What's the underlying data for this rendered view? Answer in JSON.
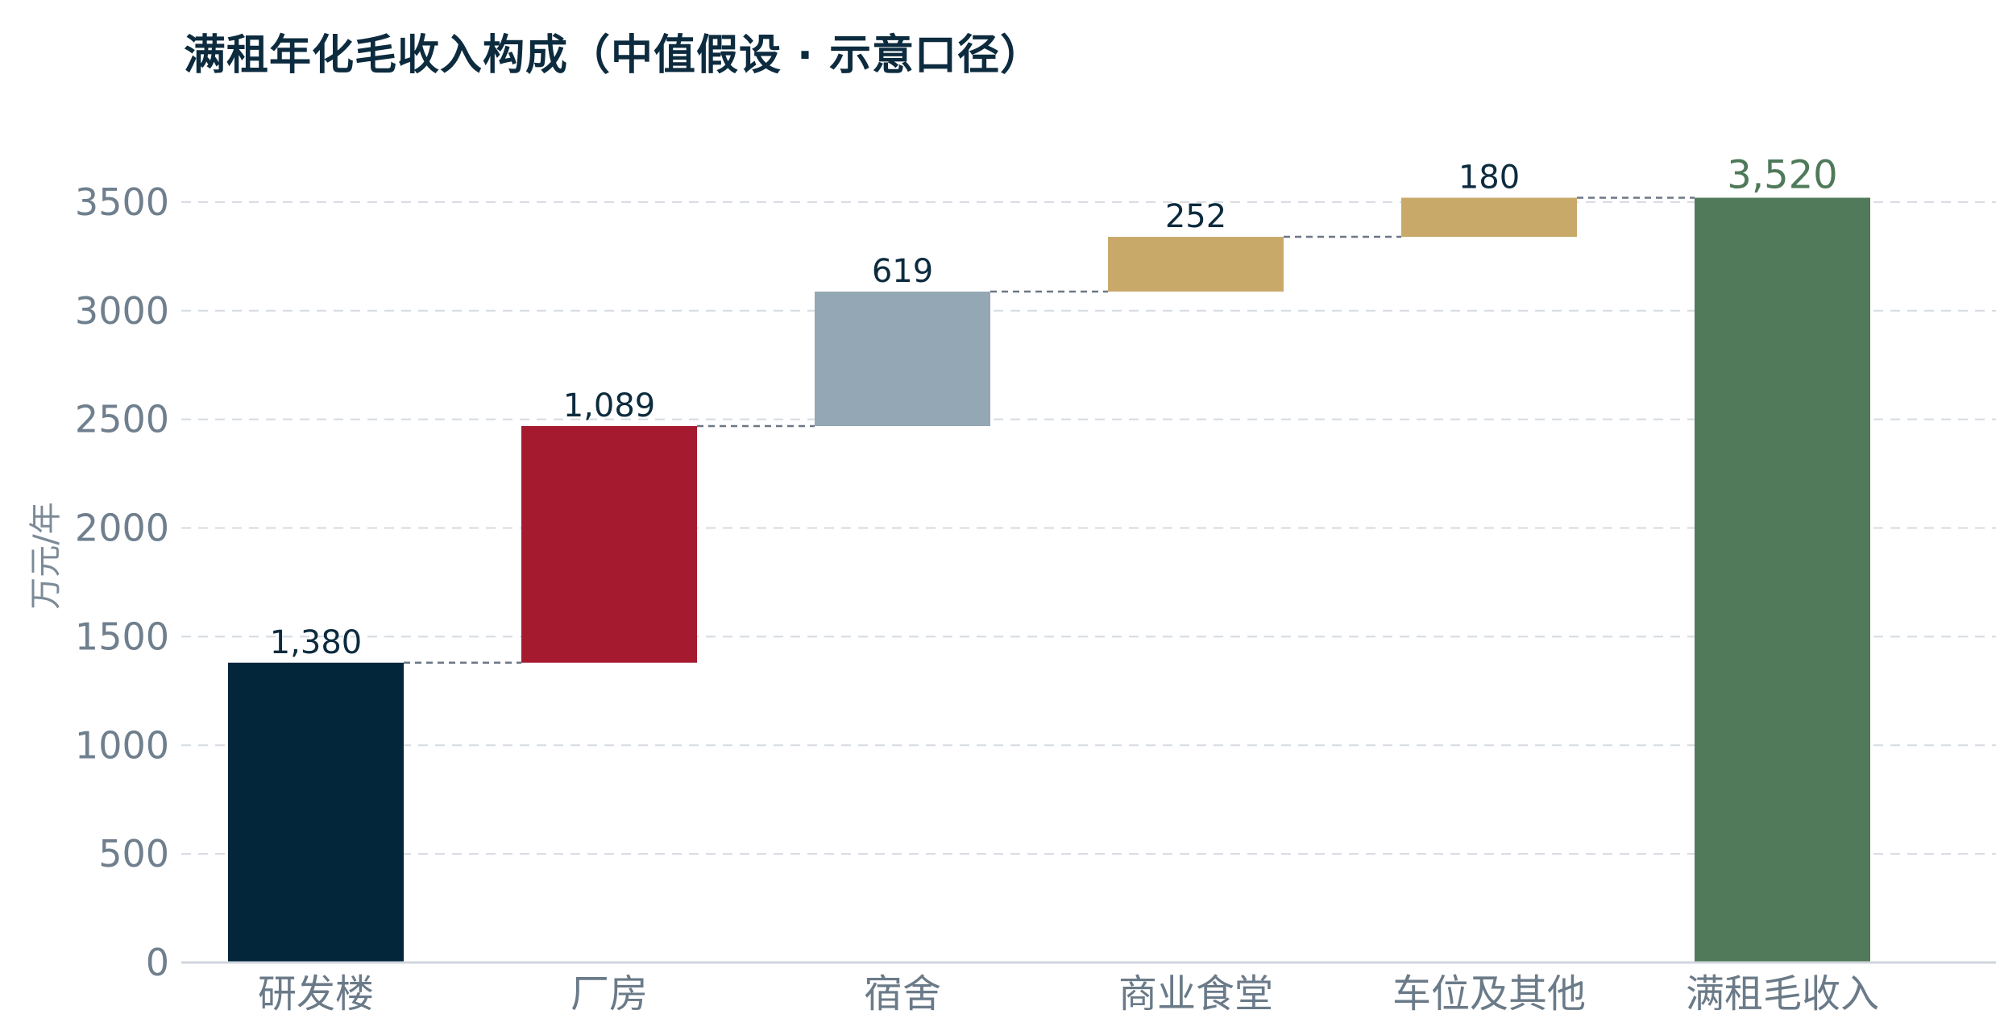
{
  "chart_data": {
    "type": "bar",
    "subtype": "waterfall",
    "title": "满租年化毛收入构成（中值假设 · 示意口径）",
    "ylabel": "万元/年",
    "xlabel": "",
    "ylim": [
      0,
      3520
    ],
    "yticks": [
      0,
      500,
      1000,
      1500,
      2000,
      2500,
      3000,
      3500
    ],
    "grid": true,
    "grid_style": "dashed",
    "categories": [
      "研发楼",
      "厂房",
      "宿舍",
      "商业食堂",
      "车位及其他",
      "满租毛收入"
    ],
    "values": [
      1380,
      1089,
      619,
      252,
      180,
      3520
    ],
    "bar_kind": [
      "increment",
      "increment",
      "increment",
      "increment",
      "increment",
      "total"
    ],
    "value_labels": [
      "1,380",
      "1,089",
      "619",
      "252",
      "180",
      "3,520"
    ],
    "colors": [
      "#03263b",
      "#a51a2f",
      "#94a7b4",
      "#c9a96a",
      "#c9a96a",
      "#517a5b"
    ],
    "connector_style": "dashed"
  }
}
